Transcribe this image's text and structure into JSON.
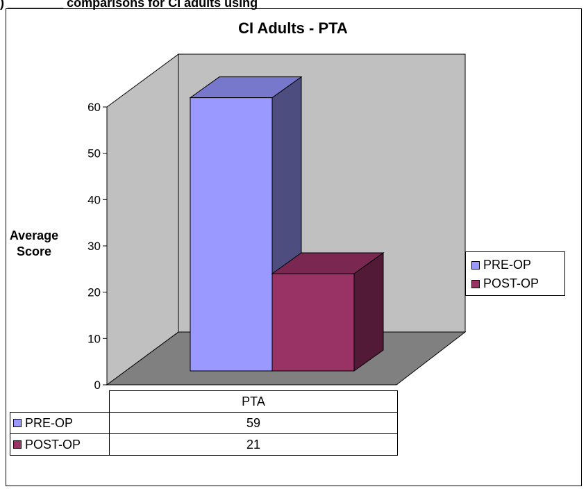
{
  "top_heading": {
    "underlined_text": "",
    "rest_text": ") ________ comparisons for CI adults using"
  },
  "chart_data": {
    "type": "bar",
    "title": "CI Adults - PTA",
    "xlabel": "",
    "ylabel": "Average Score",
    "ylim": [
      0,
      60
    ],
    "yticks": [
      0,
      10,
      20,
      30,
      40,
      50,
      60
    ],
    "categories": [
      "PTA"
    ],
    "series": [
      {
        "name": "PRE-OP",
        "values": [
          59
        ],
        "color": "#9999ff"
      },
      {
        "name": "POST-OP",
        "values": [
          21
        ],
        "color": "#993366"
      }
    ],
    "legend_position": "right",
    "grid": false,
    "data_table": true
  }
}
